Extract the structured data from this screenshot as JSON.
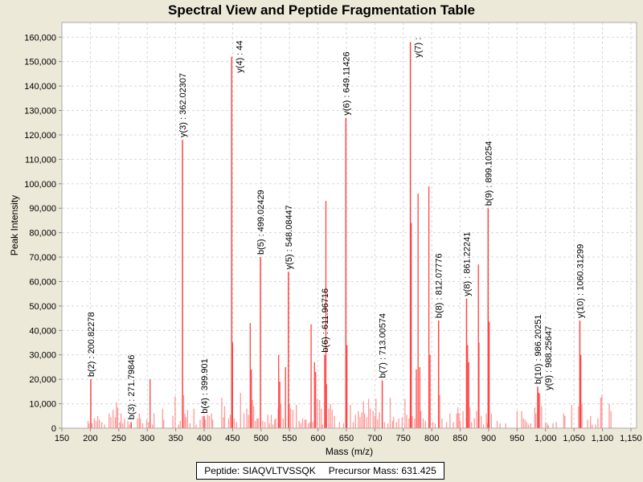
{
  "chart_data": {
    "type": "bar",
    "title": "Spectral View and Peptide Fragmentation Table",
    "xlabel": "Mass (m/z)",
    "ylabel": "Peak Intensity",
    "xlim": [
      150,
      1160
    ],
    "ylim": [
      0,
      166000
    ],
    "xticks": [
      150,
      200,
      250,
      300,
      350,
      400,
      450,
      500,
      550,
      600,
      650,
      700,
      750,
      800,
      850,
      900,
      950,
      1000,
      1050,
      1100,
      1150
    ],
    "xtick_labels": [
      "150",
      "200",
      "250",
      "300",
      "350",
      "400",
      "450",
      "500",
      "550",
      "600",
      "650",
      "700",
      "750",
      "800",
      "850",
      "900",
      "950",
      "1,000",
      "1,050",
      "1,100",
      "1,150"
    ],
    "yticks": [
      0,
      10000,
      20000,
      30000,
      40000,
      50000,
      60000,
      70000,
      80000,
      90000,
      100000,
      110000,
      120000,
      130000,
      140000,
      150000,
      160000
    ],
    "ytick_labels": [
      "0",
      "10,000",
      "20,000",
      "30,000",
      "40,000",
      "50,000",
      "60,000",
      "70,000",
      "80,000",
      "90,000",
      "100,000",
      "110,000",
      "120,000",
      "130,000",
      "140,000",
      "150,000",
      "160,000"
    ],
    "grid": true,
    "colors": {
      "strong": "#FF4444",
      "weak": "#FF9999",
      "grid": "#D8D8D8"
    },
    "annotated_peaks": [
      {
        "mz": 200.82278,
        "intensity": 20000,
        "label": "b(2) : 200.82278"
      },
      {
        "mz": 271.79846,
        "intensity": 2500,
        "label": "b(3) : 271.79846"
      },
      {
        "mz": 362.02307,
        "intensity": 118000,
        "label": "y(3) : 362.02307"
      },
      {
        "mz": 399.901,
        "intensity": 5000,
        "label": "b(4) : 399.901"
      },
      {
        "mz": 448.5,
        "intensity": 152000,
        "label": "y(4) : 44"
      },
      {
        "mz": 499.02429,
        "intensity": 70000,
        "label": "b(5) : 499.02429"
      },
      {
        "mz": 548.08447,
        "intensity": 64000,
        "label": "y(5) : 548.08447"
      },
      {
        "mz": 611.96716,
        "intensity": 30000,
        "label": "b(6) : 611.96716"
      },
      {
        "mz": 649.11426,
        "intensity": 127000,
        "label": "y(6) : 649.11426"
      },
      {
        "mz": 713.00574,
        "intensity": 19500,
        "label": "b(7) : 713.00574"
      },
      {
        "mz": 762.5,
        "intensity": 158000,
        "label": "y(7) :"
      },
      {
        "mz": 812.07776,
        "intensity": 44000,
        "label": "b(8) : 812.07776"
      },
      {
        "mz": 861.22241,
        "intensity": 53000,
        "label": "y(8) : 861.22241"
      },
      {
        "mz": 899.10254,
        "intensity": 90000,
        "label": "b(9) : 899.10254"
      },
      {
        "mz": 986.20251,
        "intensity": 17000,
        "label": "b(10) : 986.20251"
      },
      {
        "mz": 988.25647,
        "intensity": 14500,
        "label": "y(9) : 988.25647"
      },
      {
        "mz": 1060.31299,
        "intensity": 44000,
        "label": "y(10) : 1060.31299"
      }
    ],
    "peaks": [
      [
        196,
        3000
      ],
      [
        198,
        1800
      ],
      [
        203,
        2000
      ],
      [
        207,
        4000
      ],
      [
        210,
        3000
      ],
      [
        213,
        5000
      ],
      [
        216,
        3500
      ],
      [
        220,
        2500
      ],
      [
        225,
        1500
      ],
      [
        233,
        6000
      ],
      [
        236,
        4500
      ],
      [
        240,
        7500
      ],
      [
        244,
        4500
      ],
      [
        246,
        10500
      ],
      [
        248,
        8500
      ],
      [
        252,
        2500
      ],
      [
        254,
        6000
      ],
      [
        257,
        2000
      ],
      [
        260,
        4000
      ],
      [
        266,
        3000
      ],
      [
        269,
        1500
      ],
      [
        283,
        4000
      ],
      [
        286,
        6000
      ],
      [
        288,
        4000
      ],
      [
        292,
        2000
      ],
      [
        299,
        3500
      ],
      [
        302,
        2500
      ],
      [
        305,
        20000
      ],
      [
        309,
        1500
      ],
      [
        312,
        6000
      ],
      [
        327,
        8000
      ],
      [
        329,
        3500
      ],
      [
        345,
        5000
      ],
      [
        349,
        13000
      ],
      [
        355,
        1500
      ],
      [
        358,
        3000
      ],
      [
        364,
        13500
      ],
      [
        366,
        6000
      ],
      [
        368,
        4500
      ],
      [
        371,
        7500
      ],
      [
        375,
        2000
      ],
      [
        382,
        8000
      ],
      [
        386,
        1500
      ],
      [
        393,
        3500
      ],
      [
        397,
        5000
      ],
      [
        402,
        3500
      ],
      [
        406,
        5500
      ],
      [
        409,
        5000
      ],
      [
        413,
        6000
      ],
      [
        415,
        3500
      ],
      [
        431,
        12500
      ],
      [
        434,
        4500
      ],
      [
        436,
        9000
      ],
      [
        443,
        4000
      ],
      [
        446,
        5500
      ],
      [
        450,
        35000
      ],
      [
        453,
        4000
      ],
      [
        457,
        2500
      ],
      [
        464,
        14500
      ],
      [
        470,
        6000
      ],
      [
        475,
        8000
      ],
      [
        478,
        5500
      ],
      [
        481,
        43000
      ],
      [
        483,
        24000
      ],
      [
        485,
        11500
      ],
      [
        487,
        9000
      ],
      [
        490,
        3000
      ],
      [
        493,
        4000
      ],
      [
        495,
        4000
      ],
      [
        503,
        3000
      ],
      [
        507,
        2500
      ],
      [
        512,
        5500
      ],
      [
        515,
        2000
      ],
      [
        518,
        5500
      ],
      [
        521,
        1500
      ],
      [
        524,
        3500
      ],
      [
        526,
        4000
      ],
      [
        530,
        8000
      ],
      [
        531,
        30000
      ],
      [
        533,
        19000
      ],
      [
        535,
        10000
      ],
      [
        539,
        4000
      ],
      [
        543,
        25000
      ],
      [
        550,
        10000
      ],
      [
        552,
        8000
      ],
      [
        556,
        7500
      ],
      [
        562,
        9500
      ],
      [
        567,
        3000
      ],
      [
        570,
        2000
      ],
      [
        573,
        4000
      ],
      [
        577,
        3500
      ],
      [
        579,
        3500
      ],
      [
        583,
        2000
      ],
      [
        586,
        2500
      ],
      [
        588,
        42500
      ],
      [
        591,
        2500
      ],
      [
        594,
        27000
      ],
      [
        596,
        23000
      ],
      [
        599,
        12000
      ],
      [
        603,
        11500
      ],
      [
        606,
        8000
      ],
      [
        608,
        1500
      ],
      [
        614,
        93000
      ],
      [
        615,
        18000
      ],
      [
        619,
        8000
      ],
      [
        622,
        10000
      ],
      [
        625,
        7500
      ],
      [
        629,
        5000
      ],
      [
        638,
        2500
      ],
      [
        645,
        2000
      ],
      [
        651,
        34000
      ],
      [
        657,
        9500
      ],
      [
        662,
        2500
      ],
      [
        666,
        5500
      ],
      [
        671,
        7000
      ],
      [
        674,
        4500
      ],
      [
        677,
        6500
      ],
      [
        680,
        11000
      ],
      [
        682,
        6000
      ],
      [
        686,
        4500
      ],
      [
        689,
        12000
      ],
      [
        692,
        8000
      ],
      [
        697,
        7000
      ],
      [
        700,
        5000
      ],
      [
        702,
        12000
      ],
      [
        705,
        3500
      ],
      [
        708,
        6500
      ],
      [
        717,
        2500
      ],
      [
        723,
        2000
      ],
      [
        727,
        12500
      ],
      [
        731,
        3000
      ],
      [
        733,
        4500
      ],
      [
        738,
        2500
      ],
      [
        742,
        4000
      ],
      [
        748,
        4500
      ],
      [
        753,
        12000
      ],
      [
        756,
        5500
      ],
      [
        760,
        4000
      ],
      [
        764,
        84000
      ],
      [
        766,
        5000
      ],
      [
        770,
        4000
      ],
      [
        773,
        24000
      ],
      [
        776,
        96000
      ],
      [
        779,
        25000
      ],
      [
        781,
        7000
      ],
      [
        785,
        4000
      ],
      [
        789,
        3000
      ],
      [
        795,
        99000
      ],
      [
        797,
        30000
      ],
      [
        802,
        2500
      ],
      [
        806,
        2000
      ],
      [
        814,
        13500
      ],
      [
        818,
        4000
      ],
      [
        826,
        2500
      ],
      [
        832,
        6000
      ],
      [
        838,
        2500
      ],
      [
        844,
        6000
      ],
      [
        846,
        8500
      ],
      [
        848,
        6000
      ],
      [
        850,
        3000
      ],
      [
        855,
        7000
      ],
      [
        863,
        34000
      ],
      [
        865,
        27000
      ],
      [
        867,
        8500
      ],
      [
        870,
        2500
      ],
      [
        875,
        4000
      ],
      [
        879,
        7000
      ],
      [
        882,
        67000
      ],
      [
        883,
        35000
      ],
      [
        887,
        5000
      ],
      [
        891,
        1500
      ],
      [
        896,
        6000
      ],
      [
        898,
        2000
      ],
      [
        901,
        43500
      ],
      [
        905,
        6000
      ],
      [
        915,
        3000
      ],
      [
        920,
        2000
      ],
      [
        930,
        2000
      ],
      [
        950,
        7000
      ],
      [
        958,
        7000
      ],
      [
        961,
        4000
      ],
      [
        964,
        3500
      ],
      [
        967,
        2500
      ],
      [
        970,
        1500
      ],
      [
        974,
        2000
      ],
      [
        981,
        8500
      ],
      [
        983,
        6000
      ],
      [
        990,
        14000
      ],
      [
        993,
        9000
      ],
      [
        1000,
        2500
      ],
      [
        1003,
        2000
      ],
      [
        1005,
        1000
      ],
      [
        1013,
        2000
      ],
      [
        1019,
        2500
      ],
      [
        1032,
        6000
      ],
      [
        1034,
        5000
      ],
      [
        1046,
        9500
      ],
      [
        1058,
        9000
      ],
      [
        1062,
        30000
      ],
      [
        1064,
        10000
      ],
      [
        1074,
        3500
      ],
      [
        1079,
        5000
      ],
      [
        1082,
        1500
      ],
      [
        1088,
        1500
      ],
      [
        1092,
        4000
      ],
      [
        1097,
        12500
      ],
      [
        1099,
        13500
      ],
      [
        1112,
        10000
      ],
      [
        1115,
        7000
      ]
    ],
    "legend": {
      "peptide": "Peptide: SIAQVLTVSSQK",
      "precursor": "Precursor Mass: 631.425"
    }
  }
}
